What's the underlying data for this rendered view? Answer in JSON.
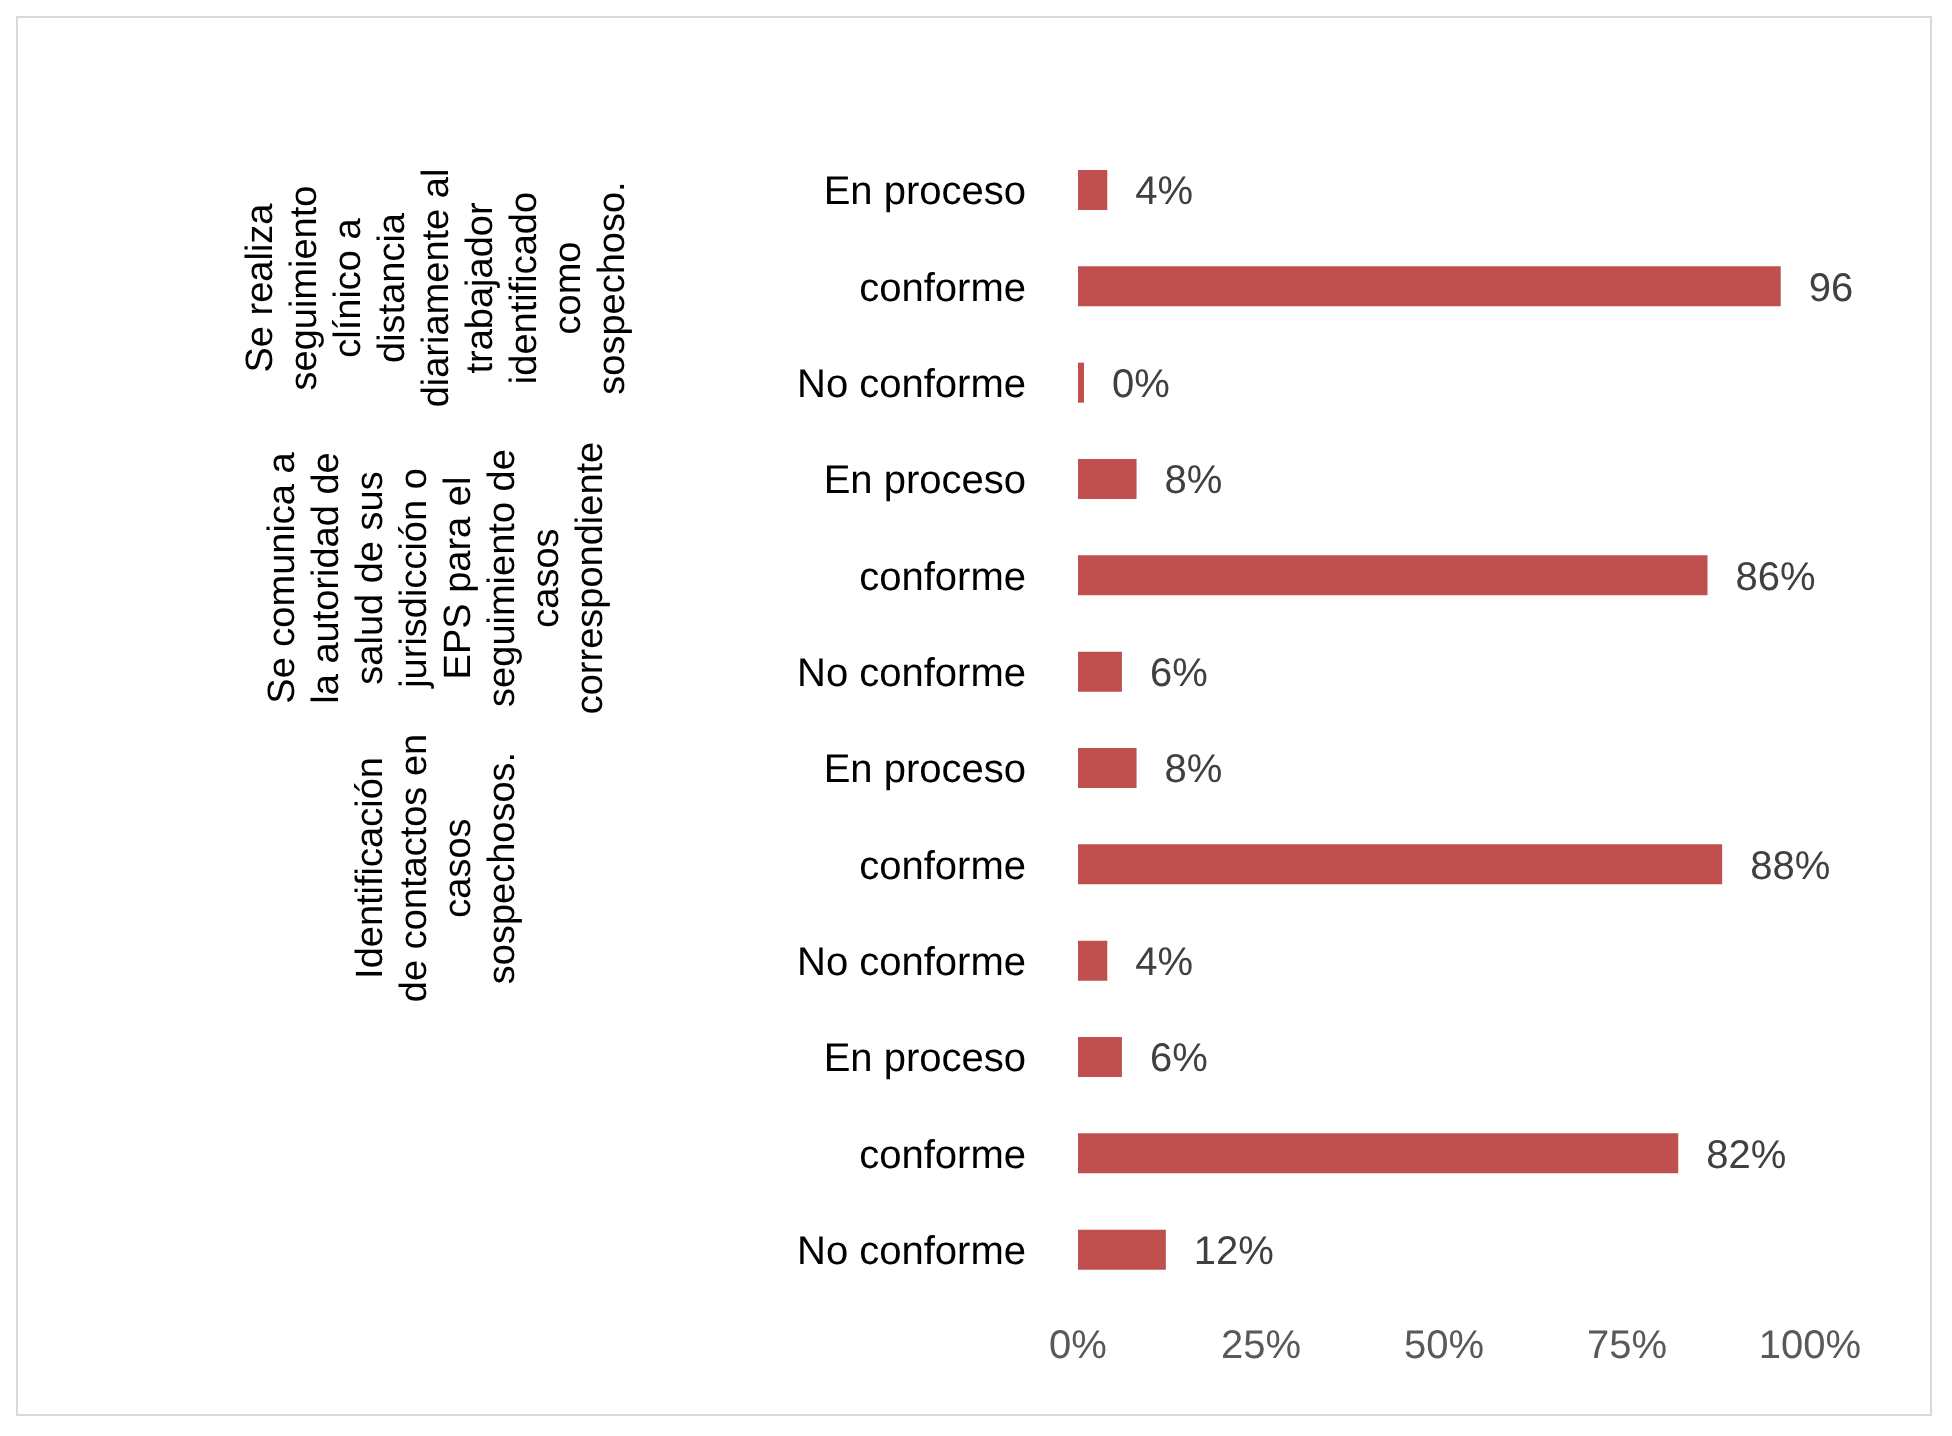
{
  "chart_data": {
    "type": "bar",
    "orientation": "horizontal",
    "categories": [
      "En proceso",
      "conforme",
      "No conforme",
      "En proceso",
      "conforme",
      "No conforme",
      "En proceso",
      "conforme",
      "No conforme",
      "En proceso",
      "conforme",
      "No conforme"
    ],
    "values": [
      4,
      96,
      0,
      8,
      86,
      6,
      8,
      88,
      4,
      6,
      82,
      12
    ],
    "value_labels": [
      "4%",
      "96",
      "0%",
      "8%",
      "86%",
      "6%",
      "8%",
      "88%",
      "4%",
      "6%",
      "82%",
      "12%"
    ],
    "color": "#c0504d",
    "xlim": [
      0,
      100
    ],
    "xticks": [
      {
        "value": 0,
        "label": "0%"
      },
      {
        "value": 25,
        "label": "25%"
      },
      {
        "value": 50,
        "label": "50%"
      },
      {
        "value": 75,
        "label": "75%"
      },
      {
        "value": 100,
        "label": "100%"
      }
    ],
    "grid": false,
    "legend": false,
    "annotations": [
      "Se realiza seguimiento clínico a distancia diariamente al trabajador identificado como sospechoso.",
      "Se comunica a la autoridad de salud de sus jurisdicción o EPS para el seguimiento de casos correspondiente",
      "Identificación de contactos en casos sospechosos."
    ]
  }
}
